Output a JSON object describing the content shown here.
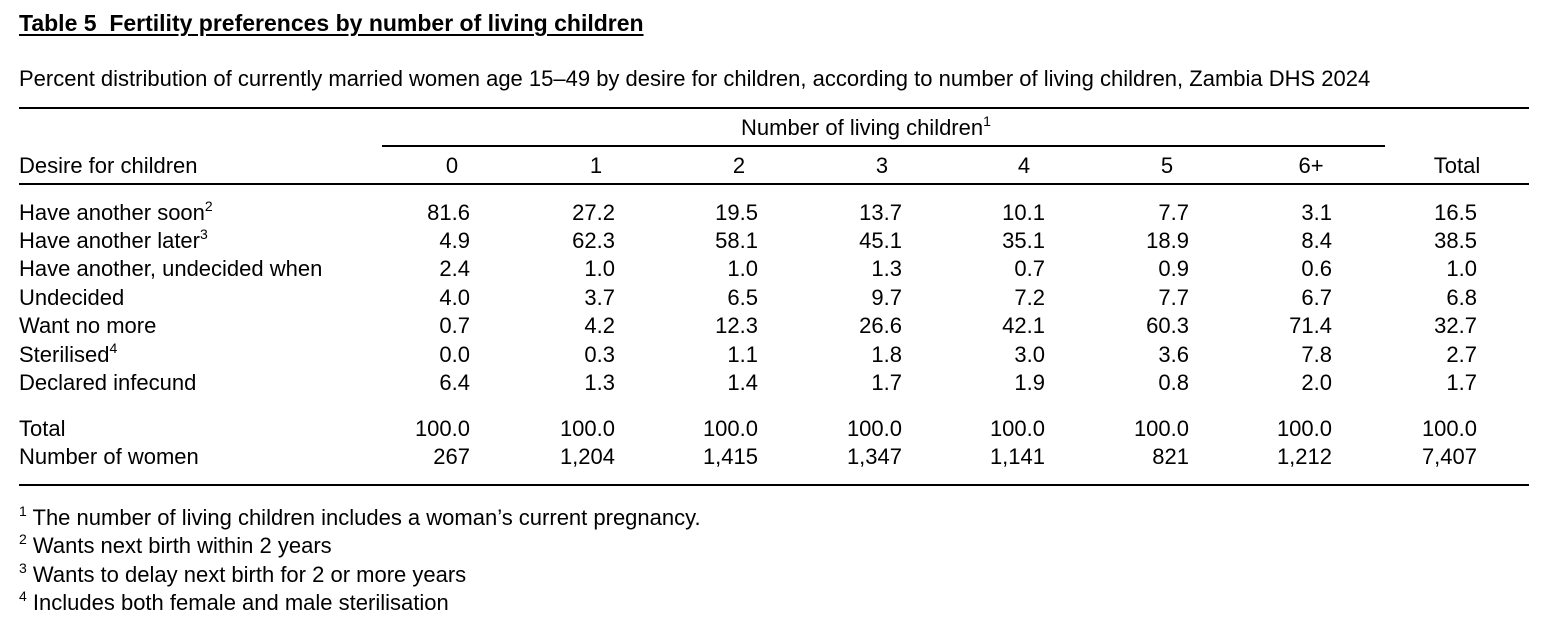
{
  "title": "Table 5  Fertility preferences by number of living children",
  "subtitle": "Percent distribution of currently married women age 15–49 by desire for children, according to number of living children, Zambia DHS 2024",
  "spanner": {
    "label": "Number of living children",
    "sup": "1"
  },
  "stub_header": "Desire for children",
  "columns": [
    "0",
    "1",
    "2",
    "3",
    "4",
    "5",
    "6+",
    "Total"
  ],
  "rows": [
    {
      "label": "Have another soon",
      "sup": "2",
      "values": [
        "81.6",
        "27.2",
        "19.5",
        "13.7",
        "10.1",
        "7.7",
        "3.1",
        "16.5"
      ]
    },
    {
      "label": "Have another later",
      "sup": "3",
      "values": [
        "4.9",
        "62.3",
        "58.1",
        "45.1",
        "35.1",
        "18.9",
        "8.4",
        "38.5"
      ]
    },
    {
      "label": "Have another, undecided when",
      "sup": "",
      "values": [
        "2.4",
        "1.0",
        "1.0",
        "1.3",
        "0.7",
        "0.9",
        "0.6",
        "1.0"
      ]
    },
    {
      "label": "Undecided",
      "sup": "",
      "values": [
        "4.0",
        "3.7",
        "6.5",
        "9.7",
        "7.2",
        "7.7",
        "6.7",
        "6.8"
      ]
    },
    {
      "label": "Want no more",
      "sup": "",
      "values": [
        "0.7",
        "4.2",
        "12.3",
        "26.6",
        "42.1",
        "60.3",
        "71.4",
        "32.7"
      ]
    },
    {
      "label": "Sterilised",
      "sup": "4",
      "values": [
        "0.0",
        "0.3",
        "1.1",
        "1.8",
        "3.0",
        "3.6",
        "7.8",
        "2.7"
      ]
    },
    {
      "label": "Declared infecund",
      "sup": "",
      "values": [
        "6.4",
        "1.3",
        "1.4",
        "1.7",
        "1.9",
        "0.8",
        "2.0",
        "1.7"
      ]
    }
  ],
  "total_rows": [
    {
      "label": "Total",
      "values": [
        "100.0",
        "100.0",
        "100.0",
        "100.0",
        "100.0",
        "100.0",
        "100.0",
        "100.0"
      ]
    },
    {
      "label": "Number of women",
      "values": [
        "267",
        "1,204",
        "1,415",
        "1,347",
        "1,141",
        "821",
        "1,212",
        "7,407"
      ]
    }
  ],
  "footnotes": [
    {
      "mark": "1",
      "text": " The number of living children includes a woman’s current pregnancy."
    },
    {
      "mark": "2",
      "text": " Wants next birth within 2 years"
    },
    {
      "mark": "3",
      "text": " Wants to delay next birth for 2 or more years"
    },
    {
      "mark": "4",
      "text": " Includes both female and male sterilisation"
    }
  ]
}
